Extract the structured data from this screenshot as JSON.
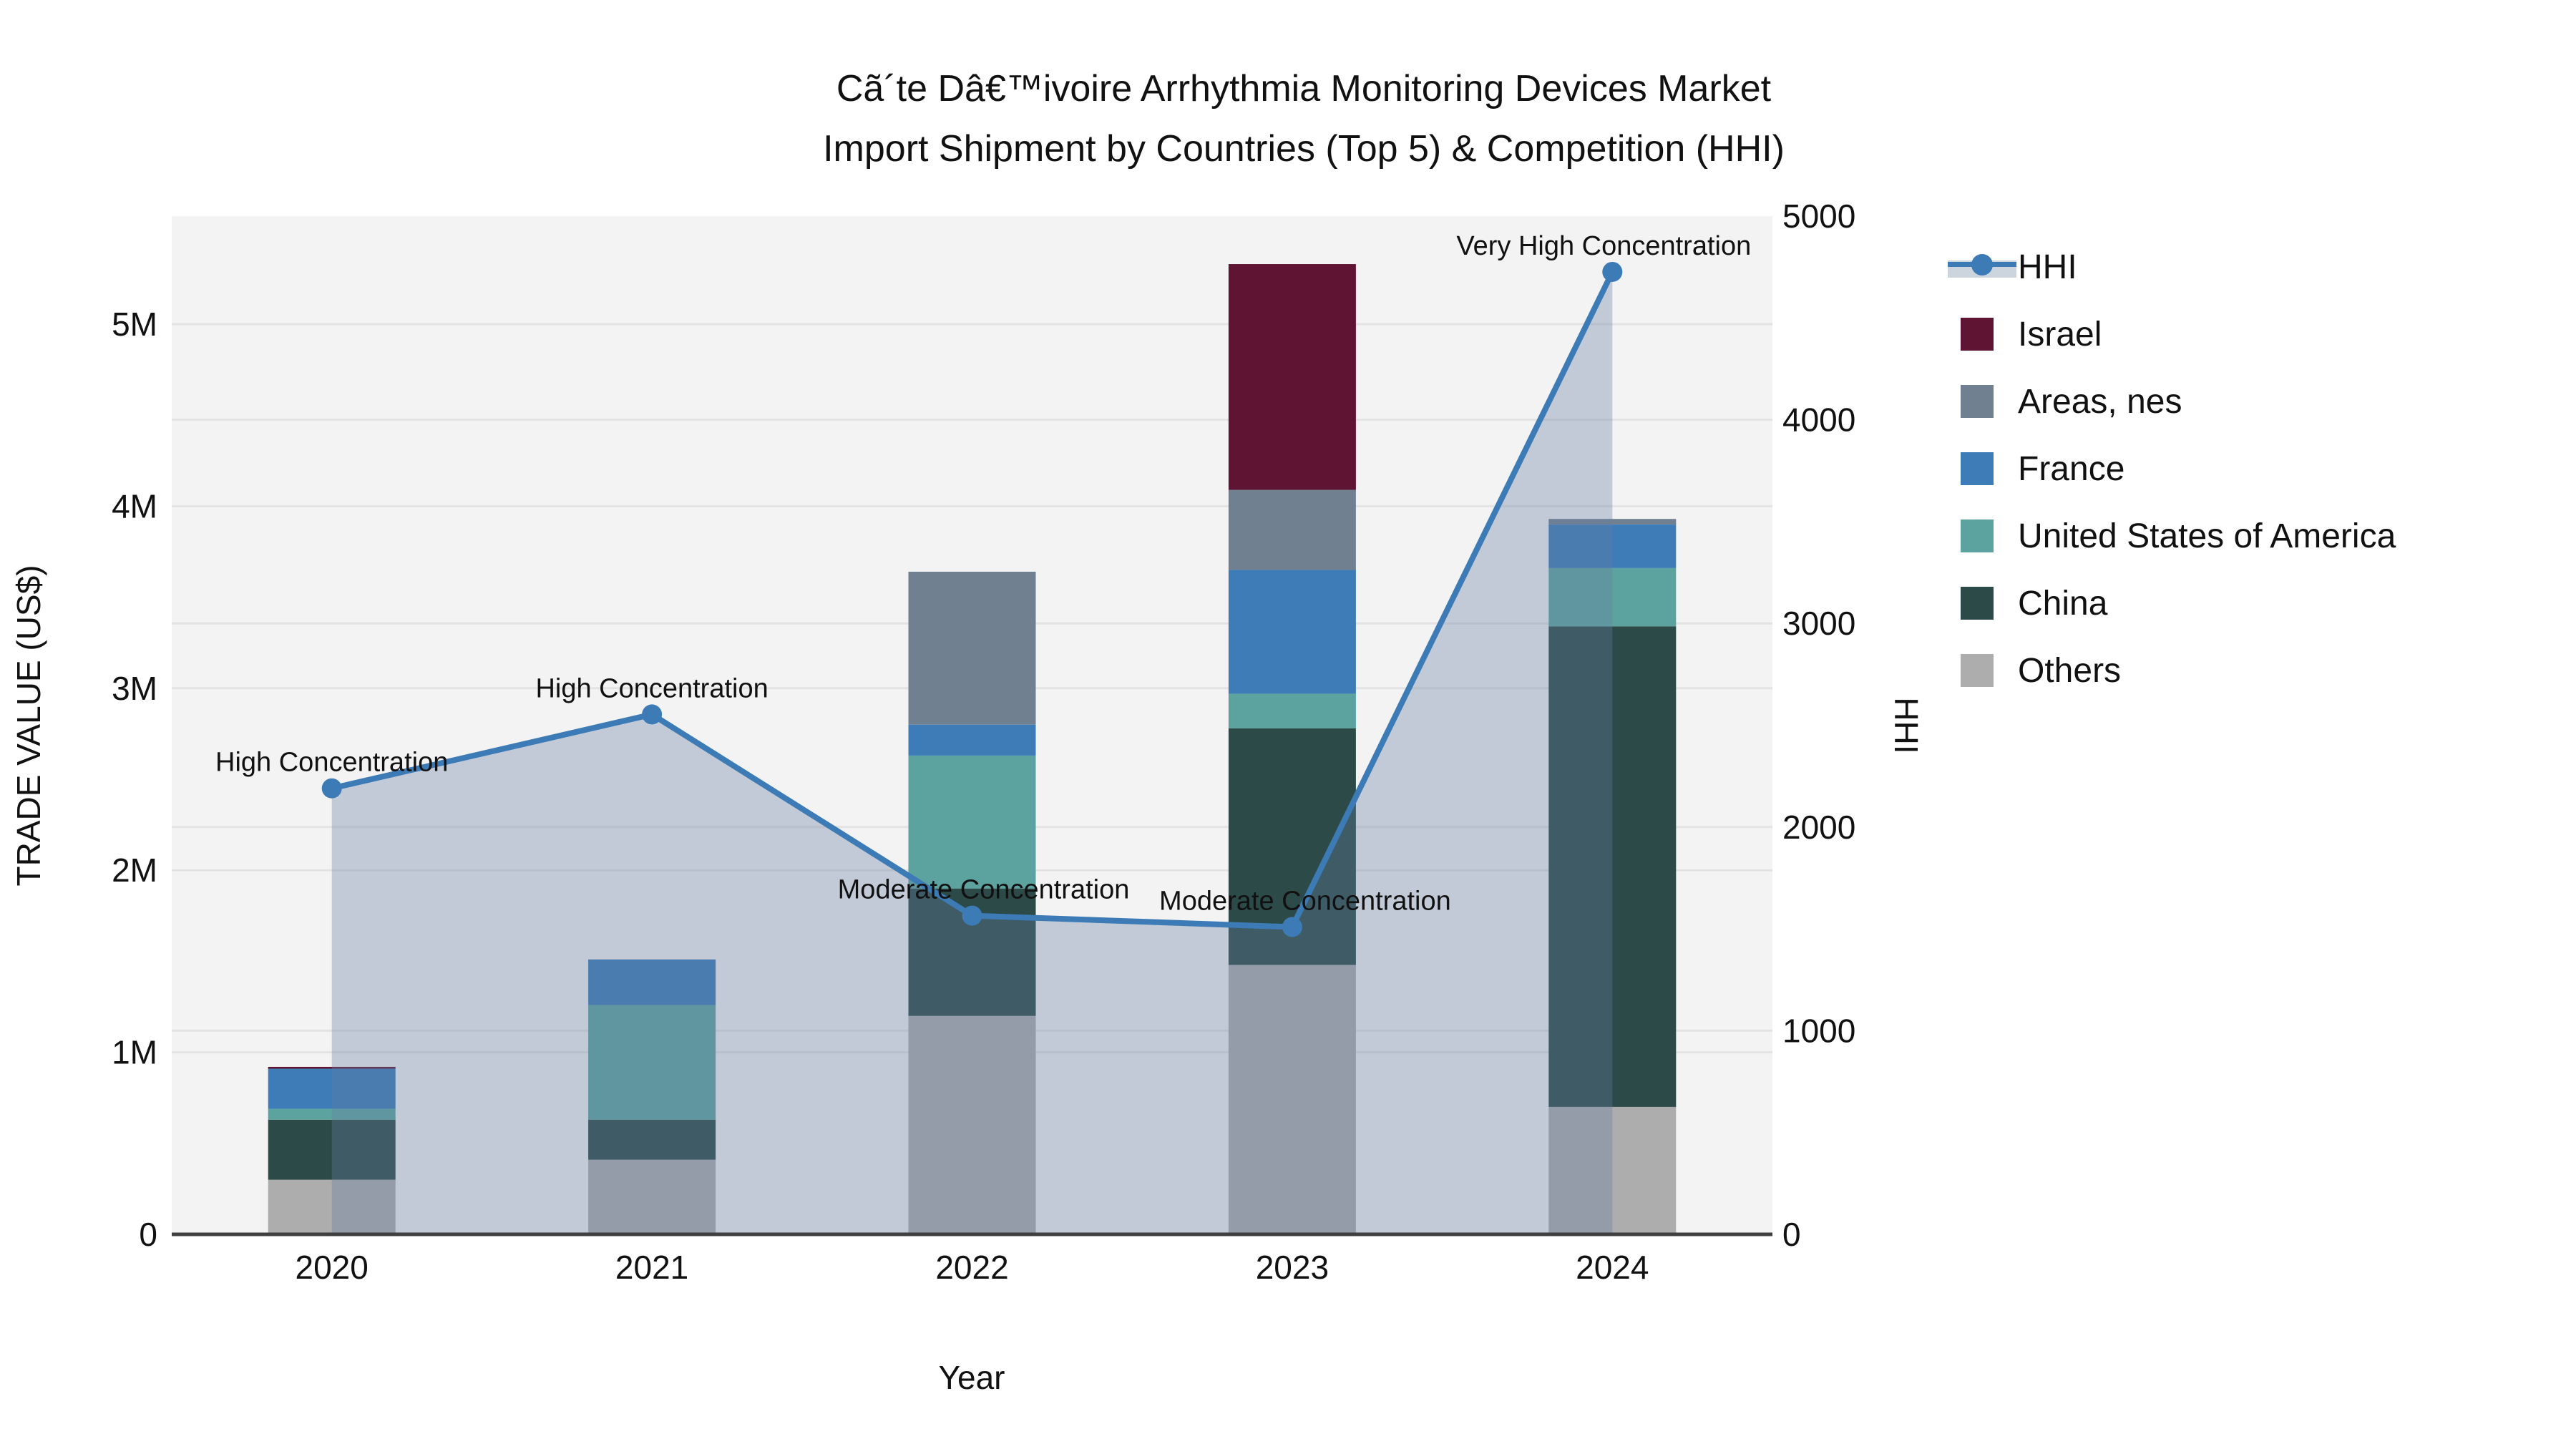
{
  "title": {
    "line1": "Cã´te Dâ€™ivoire Arrhythmia Monitoring Devices Market",
    "line2": "Import Shipment by Countries (Top 5) & Competition (HHI)"
  },
  "axes": {
    "x": {
      "title": "Year",
      "ticks": [
        "2020",
        "2021",
        "2022",
        "2023",
        "2024"
      ]
    },
    "y_left": {
      "title": "TRADE VALUE (US$)",
      "ticks": [
        "0",
        "1M",
        "2M",
        "3M",
        "4M",
        "5M"
      ]
    },
    "y_right": {
      "title": "HHI",
      "ticks": [
        "0",
        "1000",
        "2000",
        "3000",
        "4000",
        "5000"
      ]
    }
  },
  "legend": {
    "items": [
      {
        "label": "HHI",
        "type": "line",
        "color": "#3C7BB5"
      },
      {
        "label": "Israel",
        "type": "square",
        "color": "#5F1433"
      },
      {
        "label": "Areas, nes",
        "type": "square",
        "color": "#708090"
      },
      {
        "label": "France",
        "type": "square",
        "color": "#3E7CB8"
      },
      {
        "label": "United States of America",
        "type": "square",
        "color": "#5CA3A0"
      },
      {
        "label": "China",
        "type": "square",
        "color": "#2C4A47"
      },
      {
        "label": "Others",
        "type": "square",
        "color": "#ADADAD"
      }
    ]
  },
  "colors": {
    "plot_background": "#f3f3f3",
    "gridline": "#e3e3e3",
    "axis_line": "#3f3f3f",
    "hhi_line": "#3C7BB5",
    "hhi_area_fill": "rgba(100,125,160,0.35)",
    "text": "#111111"
  },
  "chart_data": {
    "type": "bar",
    "subtype": "stacked bars (left axis, trade value US$) + HHI line with area fill (right axis)",
    "categories": [
      2020,
      2021,
      2022,
      2023,
      2024
    ],
    "stack_order_bottom_to_top": [
      "Others",
      "China",
      "United States of America",
      "France",
      "Areas, nes",
      "Israel"
    ],
    "series": [
      {
        "name": "Others",
        "color": "#ADADAD",
        "values_musd": [
          0.3,
          0.41,
          1.2,
          1.48,
          0.7
        ]
      },
      {
        "name": "China",
        "color": "#2C4A47",
        "values_musd": [
          0.33,
          0.22,
          0.7,
          1.3,
          2.64
        ]
      },
      {
        "name": "United States of America",
        "color": "#5CA3A0",
        "values_musd": [
          0.06,
          0.63,
          0.73,
          0.19,
          0.32
        ]
      },
      {
        "name": "France",
        "color": "#3E7CB8",
        "values_musd": [
          0.22,
          0.25,
          0.17,
          0.68,
          0.24
        ]
      },
      {
        "name": "Areas, nes",
        "color": "#708090",
        "values_musd": [
          0.0,
          0.0,
          0.84,
          0.44,
          0.03
        ]
      },
      {
        "name": "Israel",
        "color": "#5F1433",
        "values_musd": [
          0.01,
          0.0,
          0.0,
          1.24,
          0.0
        ]
      }
    ],
    "bar_totals_musd": [
      0.92,
      1.51,
      3.64,
      5.33,
      3.93
    ],
    "line_series": {
      "name": "HHI",
      "axis": "right",
      "color": "#3C7BB5",
      "values": [
        2190,
        2553,
        1565,
        1509,
        4726
      ]
    },
    "annotations": [
      {
        "year": 2020,
        "text": "High Concentration"
      },
      {
        "year": 2021,
        "text": "High Concentration"
      },
      {
        "year": 2022,
        "text": "Moderate Concentration"
      },
      {
        "year": 2023,
        "text": "Moderate Concentration"
      },
      {
        "year": 2024,
        "text": "Very High Concentration"
      }
    ],
    "title": "Cã´te Dâ€™ivoire Arrhythmia Monitoring Devices Market Import Shipment by Countries (Top 5) & Competition (HHI)",
    "xlabel": "Year",
    "ylabel_left": "TRADE VALUE (US$)",
    "ylabel_right": "HHI",
    "ylim_left_musd": [
      0,
      5.59
    ],
    "ylim_right": [
      0,
      5000
    ],
    "grid": true,
    "legend_position": "right"
  }
}
